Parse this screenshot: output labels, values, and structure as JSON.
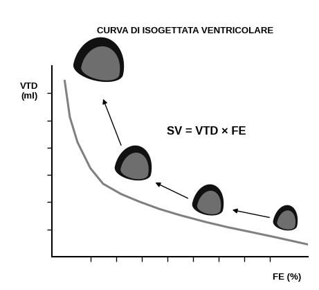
{
  "chart_data": {
    "type": "line",
    "title": "CURVA DI ISOGETTATA VENTRICOLARE",
    "x_label": "FE (%)",
    "y_label": "VTD\n(ml)",
    "annotations": [
      "SV = VTD × FE"
    ],
    "x": [
      5,
      7,
      10,
      15,
      20,
      27,
      34,
      42,
      50,
      60,
      69,
      78,
      88,
      100
    ],
    "values": [
      258,
      205,
      168,
      130,
      107,
      92,
      81,
      70,
      61,
      51,
      43,
      36,
      28,
      18
    ],
    "color": "#808080",
    "xlim": [
      0,
      100
    ],
    "ylim": [
      0,
      280
    ],
    "xticks": [
      15,
      25,
      35,
      45,
      55,
      65,
      75,
      85
    ],
    "yticks": [
      40,
      80,
      120,
      160,
      200,
      240
    ],
    "tick_labels": false,
    "grid": false
  }
}
